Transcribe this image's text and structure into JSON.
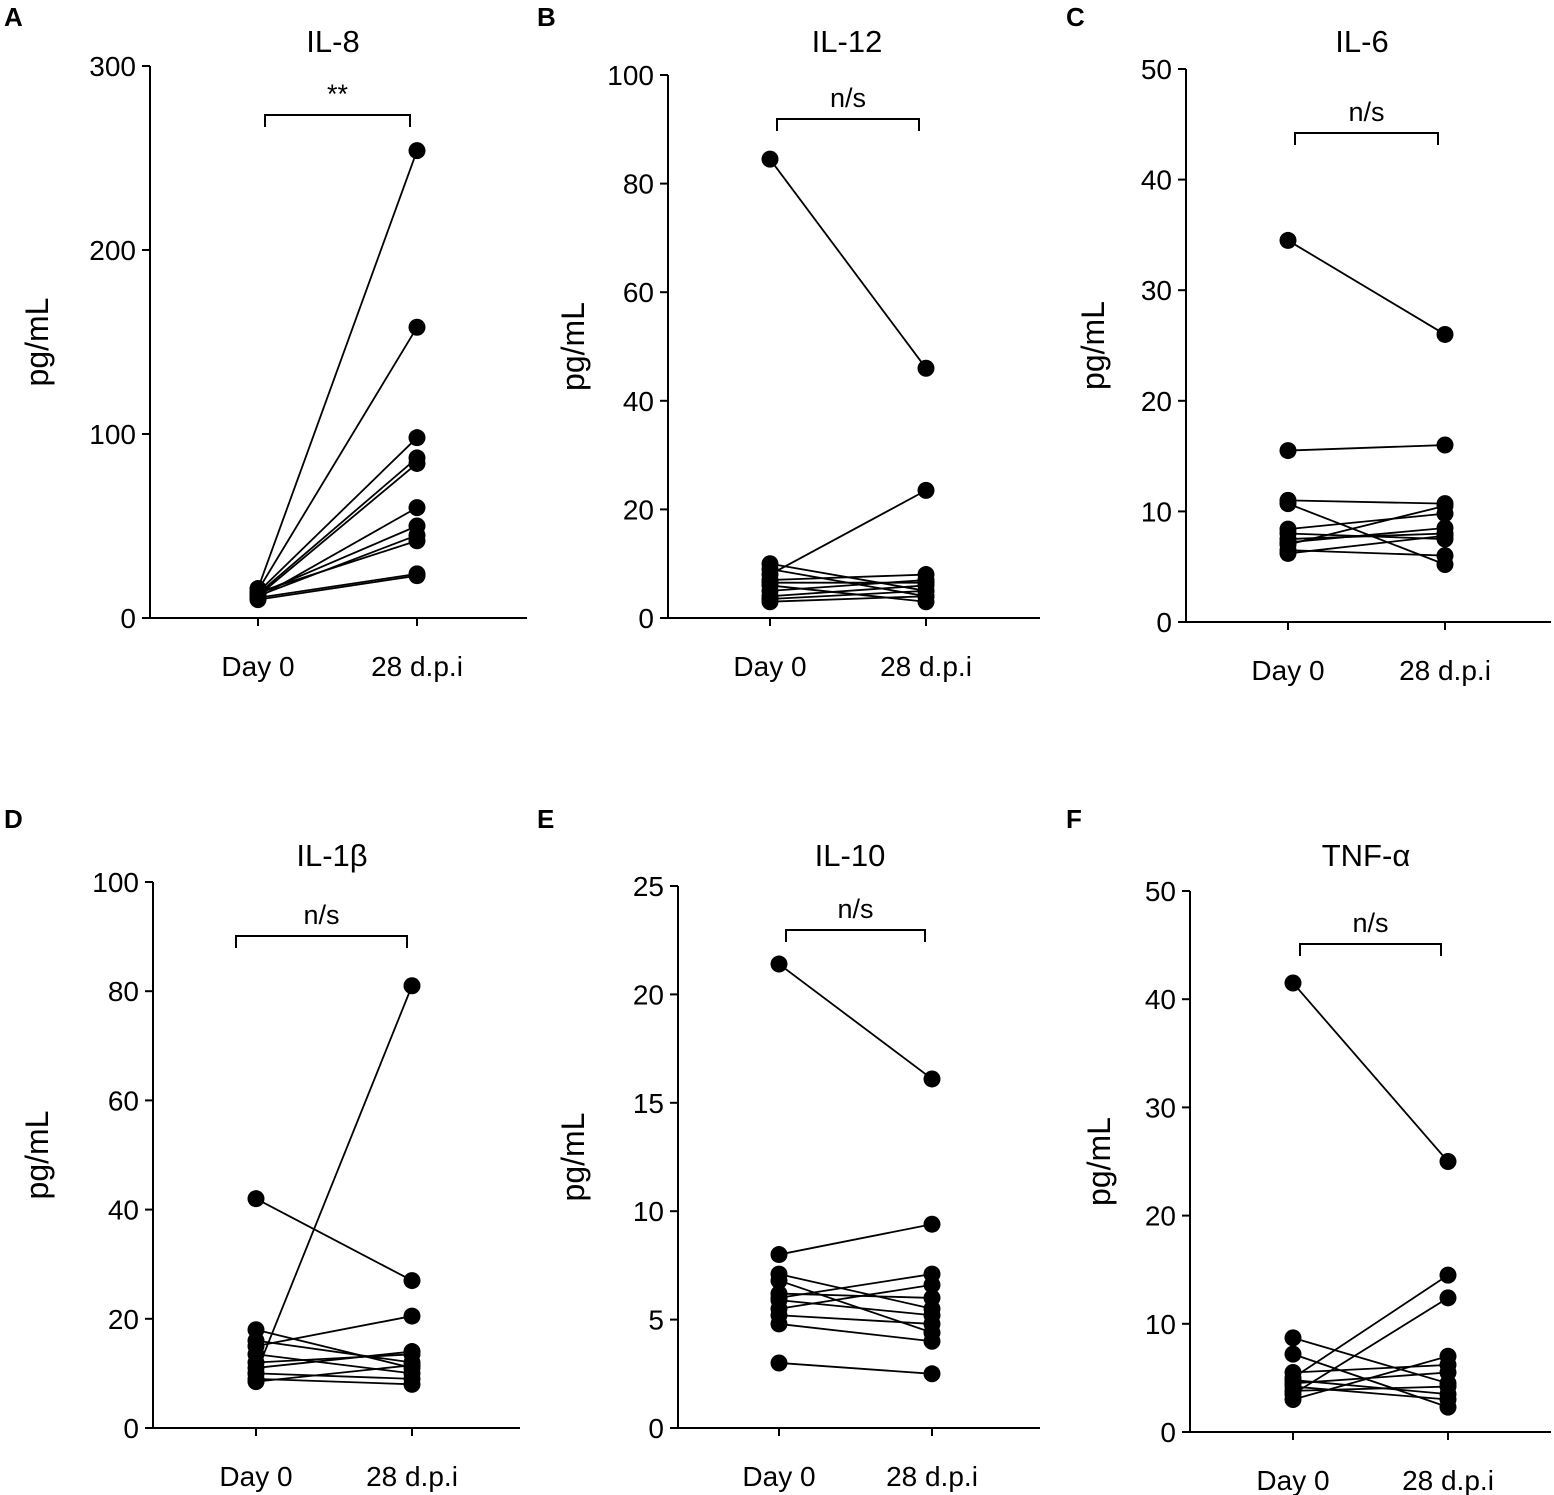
{
  "chart_data": [
    {
      "panel": "A",
      "type": "scatter",
      "title": "IL-8",
      "ylabel": "pg/mL",
      "categories": [
        "Day 0",
        "28 d.p.i"
      ],
      "ylim": [
        0,
        300
      ],
      "yticks": [
        0,
        100,
        200,
        300
      ],
      "significance": "**",
      "pairs": [
        [
          16,
          254
        ],
        [
          15,
          158
        ],
        [
          14,
          98
        ],
        [
          13,
          87
        ],
        [
          12,
          84
        ],
        [
          11,
          60
        ],
        [
          13,
          50
        ],
        [
          12,
          45
        ],
        [
          14,
          42
        ],
        [
          11,
          24
        ],
        [
          10,
          23
        ]
      ]
    },
    {
      "panel": "B",
      "type": "scatter",
      "title": "IL-12",
      "ylabel": "pg/mL",
      "categories": [
        "Day 0",
        "28 d.p.i"
      ],
      "ylim": [
        0,
        100
      ],
      "yticks": [
        0,
        20,
        40,
        60,
        80,
        100
      ],
      "significance": "n/s",
      "pairs": [
        [
          84.5,
          46
        ],
        [
          8,
          23.5
        ],
        [
          10,
          5
        ],
        [
          9,
          4
        ],
        [
          7,
          8
        ],
        [
          6,
          3
        ],
        [
          5,
          7
        ],
        [
          4,
          6
        ],
        [
          3.5,
          5
        ],
        [
          3,
          4
        ],
        [
          6.5,
          6.5
        ]
      ]
    },
    {
      "panel": "C",
      "type": "scatter",
      "title": "IL-6",
      "ylabel": "pg/mL",
      "categories": [
        "Day 0",
        "28 d.p.i"
      ],
      "ylim": [
        0,
        50
      ],
      "yticks": [
        0,
        10,
        20,
        30,
        40,
        50
      ],
      "significance": "n/s",
      "pairs": [
        [
          34.5,
          26
        ],
        [
          15.5,
          16
        ],
        [
          11,
          10.7
        ],
        [
          10.7,
          5.2
        ],
        [
          8.4,
          9.8
        ],
        [
          8,
          7.5
        ],
        [
          7.5,
          8
        ],
        [
          7,
          10.5
        ],
        [
          6.5,
          6
        ],
        [
          6.2,
          7.8
        ],
        [
          7.2,
          8.5
        ]
      ]
    },
    {
      "panel": "D",
      "type": "scatter",
      "title": "IL-1β",
      "ylabel": "pg/mL",
      "categories": [
        "Day 0",
        "28 d.p.i"
      ],
      "ylim": [
        0,
        100
      ],
      "yticks": [
        0,
        20,
        40,
        60,
        80,
        100
      ],
      "significance": "n/s",
      "pairs": [
        [
          42,
          27
        ],
        [
          10,
          81
        ],
        [
          18,
          11
        ],
        [
          16,
          12
        ],
        [
          15,
          20.5
        ],
        [
          13.5,
          10
        ],
        [
          12,
          13.5
        ],
        [
          11,
          14
        ],
        [
          10,
          9
        ],
        [
          9,
          8
        ],
        [
          8.5,
          11.5
        ]
      ]
    },
    {
      "panel": "E",
      "type": "scatter",
      "title": "IL-10",
      "ylabel": "pg/mL",
      "categories": [
        "Day 0",
        "28 d.p.i"
      ],
      "ylim": [
        0,
        25
      ],
      "yticks": [
        0,
        5,
        10,
        15,
        20,
        25
      ],
      "significance": "n/s",
      "pairs": [
        [
          21.4,
          16.1
        ],
        [
          8,
          9.4
        ],
        [
          7.1,
          5.5
        ],
        [
          6.8,
          4.4
        ],
        [
          6.2,
          6
        ],
        [
          6,
          7.1
        ],
        [
          5.9,
          5.2
        ],
        [
          5.5,
          6.6
        ],
        [
          5.2,
          4.8
        ],
        [
          4.8,
          4
        ],
        [
          3,
          2.5
        ]
      ]
    },
    {
      "panel": "F",
      "type": "scatter",
      "title": "TNF-α",
      "ylabel": "pg/mL",
      "categories": [
        "Day 0",
        "28 d.p.i"
      ],
      "ylim": [
        0,
        50
      ],
      "yticks": [
        0,
        10,
        20,
        30,
        40,
        50
      ],
      "significance": "n/s",
      "pairs": [
        [
          41.5,
          25
        ],
        [
          8.7,
          4.5
        ],
        [
          7.2,
          2.3
        ],
        [
          5.5,
          6.2
        ],
        [
          5,
          14.5
        ],
        [
          4.8,
          3.5
        ],
        [
          4.5,
          5.5
        ],
        [
          4.2,
          3
        ],
        [
          3.8,
          4.2
        ],
        [
          3.5,
          12.4
        ],
        [
          3,
          7
        ]
      ]
    }
  ]
}
